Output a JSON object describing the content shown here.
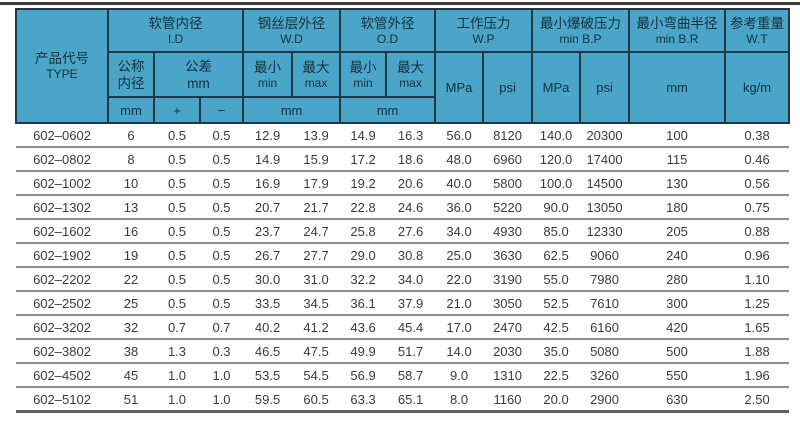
{
  "table": {
    "header": {
      "product_code": {
        "zh": "产品代号",
        "en": "TYPE"
      },
      "groups": [
        {
          "zh": "软管内径",
          "en": "I.D"
        },
        {
          "zh": "钢丝层外径",
          "en": "W.D"
        },
        {
          "zh": "软管外径",
          "en": "O.D"
        },
        {
          "zh": "工作压力",
          "en": "W.P"
        },
        {
          "zh": "最小爆破压力",
          "en": "min B.P"
        },
        {
          "zh": "最小弯曲半径",
          "en": "min B.R"
        },
        {
          "zh": "参考重量",
          "en": "W.T"
        }
      ],
      "subheaders": {
        "nominal": {
          "line1": "公称",
          "line2": "内径"
        },
        "tolerance": {
          "line1": "公差",
          "line2": "mm"
        },
        "min": {
          "zh": "最小",
          "en": "min"
        },
        "max": {
          "zh": "最大",
          "en": "max"
        },
        "mpa": "MPa",
        "psi": "psi",
        "mm": "mm",
        "kg_per_m": "kg/m",
        "plus": "+",
        "minus": "−"
      }
    },
    "column_keys": [
      "product-code",
      "nominal-id-mm",
      "tolerance-plus",
      "tolerance-minus",
      "wd-min",
      "wd-max",
      "od-min",
      "od-max",
      "wp-mpa",
      "wp-psi",
      "bp-mpa",
      "bp-psi",
      "min-bend-radius-mm",
      "weight-kg-per-m"
    ],
    "rows": [
      [
        "602–0602",
        "6",
        "0.5",
        "0.5",
        "12.9",
        "13.9",
        "14.9",
        "16.3",
        "56.0",
        "8120",
        "140.0",
        "20300",
        "100",
        "0.38"
      ],
      [
        "602–0802",
        "8",
        "0.5",
        "0.5",
        "14.9",
        "15.9",
        "17.2",
        "18.6",
        "48.0",
        "6960",
        "120.0",
        "17400",
        "115",
        "0.46"
      ],
      [
        "602–1002",
        "10",
        "0.5",
        "0.5",
        "16.9",
        "17.9",
        "19.2",
        "20.6",
        "40.0",
        "5800",
        "100.0",
        "14500",
        "130",
        "0.56"
      ],
      [
        "602–1302",
        "13",
        "0.5",
        "0.5",
        "20.7",
        "21.7",
        "22.8",
        "24.6",
        "36.0",
        "5220",
        "90.0",
        "13050",
        "180",
        "0.75"
      ],
      [
        "602–1602",
        "16",
        "0.5",
        "0.5",
        "23.7",
        "24.7",
        "25.8",
        "27.6",
        "34.0",
        "4930",
        "85.0",
        "12330",
        "205",
        "0.88"
      ],
      [
        "602–1902",
        "19",
        "0.5",
        "0.5",
        "26.7",
        "27.7",
        "29.0",
        "30.8",
        "25.0",
        "3630",
        "62.5",
        "9060",
        "240",
        "0.96"
      ],
      [
        "602–2202",
        "22",
        "0.5",
        "0.5",
        "30.0",
        "31.0",
        "32.2",
        "34.0",
        "22.0",
        "3190",
        "55.0",
        "7980",
        "280",
        "1.10"
      ],
      [
        "602–2502",
        "25",
        "0.5",
        "0.5",
        "33.5",
        "34.5",
        "36.1",
        "37.9",
        "21.0",
        "3050",
        "52.5",
        "7610",
        "300",
        "1.25"
      ],
      [
        "602–3202",
        "32",
        "0.7",
        "0.7",
        "40.2",
        "41.2",
        "43.6",
        "45.4",
        "17.0",
        "2470",
        "42.5",
        "6160",
        "420",
        "1.65"
      ],
      [
        "602–3802",
        "38",
        "1.3",
        "0.3",
        "46.5",
        "47.5",
        "49.9",
        "51.7",
        "14.0",
        "2030",
        "35.0",
        "5080",
        "500",
        "1.88"
      ],
      [
        "602–4502",
        "45",
        "1.0",
        "1.0",
        "53.5",
        "54.5",
        "56.9",
        "58.7",
        "9.0",
        "1310",
        "22.5",
        "3260",
        "550",
        "1.96"
      ],
      [
        "602–5102",
        "51",
        "1.0",
        "1.0",
        "59.5",
        "60.5",
        "63.3",
        "65.1",
        "8.0",
        "1160",
        "20.0",
        "2900",
        "630",
        "2.50"
      ]
    ],
    "colors": {
      "header_bg": "#4BA5C8",
      "header_border": "#1C3945",
      "header_text": "#12313C",
      "row_separator": "#8F8F8F",
      "top_rule": "#3F3F3F"
    }
  }
}
